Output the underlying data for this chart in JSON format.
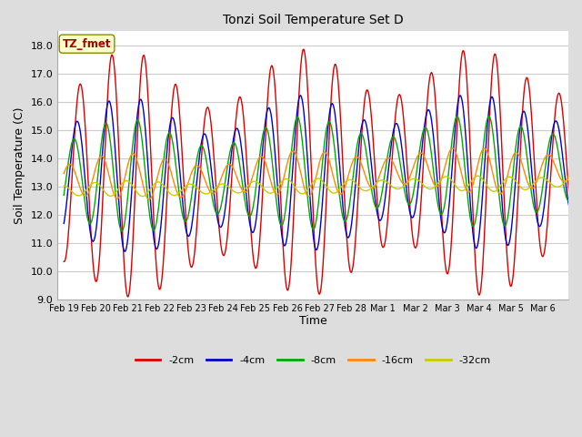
{
  "title": "Tonzi Soil Temperature Set D",
  "xlabel": "Time",
  "ylabel": "Soil Temperature (C)",
  "ylim": [
    9.0,
    18.5
  ],
  "yticks": [
    9.0,
    10.0,
    11.0,
    12.0,
    13.0,
    14.0,
    15.0,
    16.0,
    17.0,
    18.0
  ],
  "legend_label": "TZ_fmet",
  "series_labels": [
    "-2cm",
    "-4cm",
    "-8cm",
    "-16cm",
    "-32cm"
  ],
  "series_colors": [
    "#dd0000",
    "#0000cc",
    "#00aa00",
    "#ff8800",
    "#cccc00"
  ],
  "x_tick_labels": [
    "Feb 19",
    "Feb 20",
    "Feb 21",
    "Feb 22",
    "Feb 23",
    "Feb 24",
    "Feb 25",
    "Feb 26",
    "Feb 27",
    "Feb 28",
    "Mar 1",
    "Mar 2",
    "Mar 3",
    "Mar 4",
    "Mar 5",
    "Mar 6"
  ],
  "n_days": 16,
  "points_per_day": 48
}
